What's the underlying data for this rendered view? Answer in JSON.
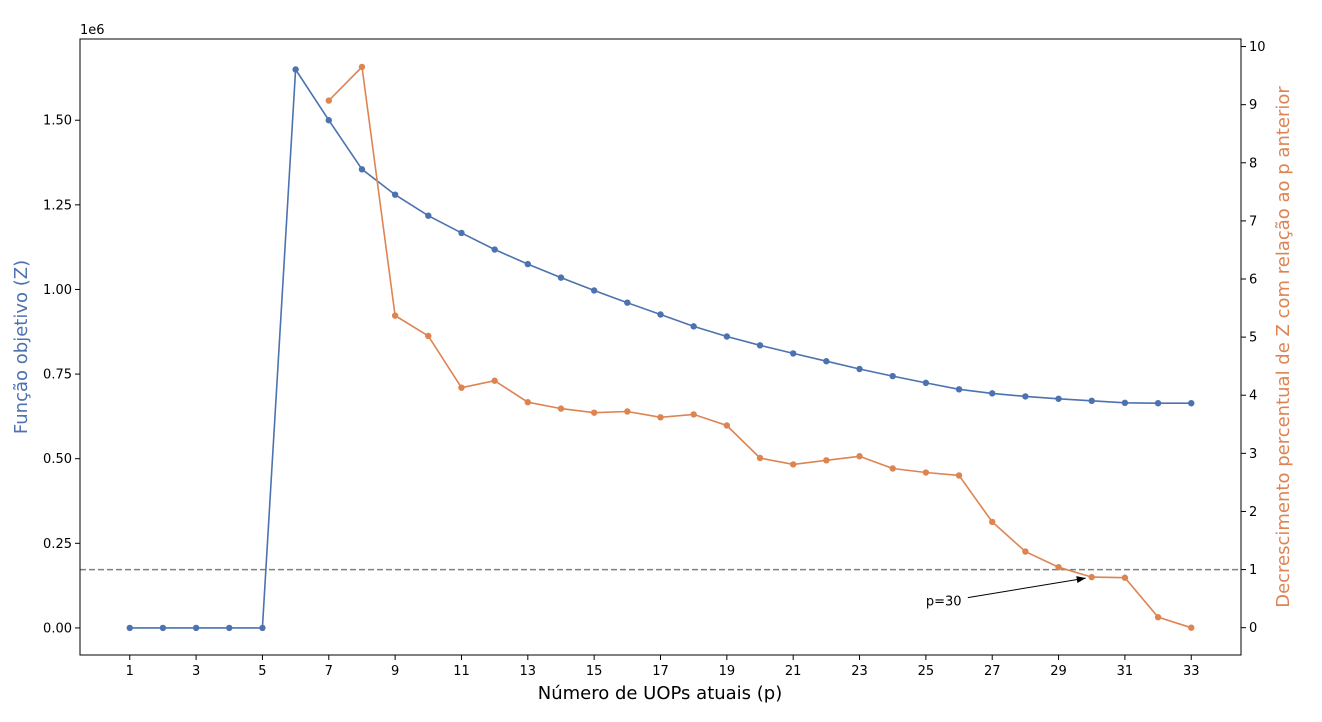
{
  "chart_data": {
    "type": "line",
    "xlabel": "Número de UOPs atuais (p)",
    "x_ticks": [
      1,
      3,
      5,
      7,
      9,
      11,
      13,
      15,
      17,
      19,
      21,
      23,
      25,
      27,
      29,
      31,
      33
    ],
    "xlim": [
      -0.5,
      34.5
    ],
    "left_axis": {
      "label": "Função objetivo (Z)",
      "color": "#4c72b0",
      "offset_label": "1e6",
      "ylim": [
        -0.08,
        1.74
      ],
      "ticks": [
        0.0,
        0.25,
        0.5,
        0.75,
        1.0,
        1.25,
        1.5
      ],
      "tick_labels": [
        "0.00",
        "0.25",
        "0.50",
        "0.75",
        "1.00",
        "1.25",
        "1.50"
      ]
    },
    "right_axis": {
      "label": "Decrescimento percentual de Z com relação ao p anterior",
      "color": "#dd8452",
      "ylim": [
        -0.47,
        10.13
      ],
      "ticks": [
        0,
        1,
        2,
        3,
        4,
        5,
        6,
        7,
        8,
        9,
        10
      ],
      "tick_labels": [
        "0",
        "1",
        "2",
        "3",
        "4",
        "5",
        "6",
        "7",
        "8",
        "9",
        "10"
      ]
    },
    "series": [
      {
        "axis": "left",
        "color": "#4c72b0",
        "x": [
          1,
          2,
          3,
          4,
          5,
          6,
          7,
          8,
          9,
          10,
          11,
          12,
          13,
          14,
          15,
          16,
          17,
          18,
          19,
          20,
          21,
          22,
          23,
          24,
          25,
          26,
          27,
          28,
          29,
          30,
          31,
          32,
          33
        ],
        "values": [
          0,
          0,
          0,
          0,
          0,
          1.65,
          1.5,
          1.355,
          1.28,
          1.218,
          1.167,
          1.118,
          1.075,
          1.035,
          0.997,
          0.961,
          0.926,
          0.891,
          0.861,
          0.835,
          0.811,
          0.788,
          0.765,
          0.744,
          0.724,
          0.705,
          0.693,
          0.684,
          0.677,
          0.671,
          0.665,
          0.664,
          0.664
        ]
      },
      {
        "axis": "right",
        "color": "#dd8452",
        "x": [
          7,
          8,
          9,
          10,
          11,
          12,
          13,
          14,
          15,
          16,
          17,
          18,
          19,
          20,
          21,
          22,
          23,
          24,
          25,
          26,
          27,
          28,
          29,
          30,
          31,
          32,
          33
        ],
        "values": [
          9.07,
          9.65,
          5.37,
          5.02,
          4.13,
          4.25,
          3.88,
          3.77,
          3.7,
          3.72,
          3.62,
          3.67,
          3.48,
          2.92,
          2.81,
          2.88,
          2.95,
          2.74,
          2.67,
          2.62,
          1.82,
          1.31,
          1.04,
          0.87,
          0.86,
          0.18,
          0.0
        ]
      }
    ],
    "reference_line": {
      "axis": "right",
      "value": 1,
      "color": "#808080",
      "style": "dashed"
    },
    "annotation": {
      "text": "p=30",
      "text_x": 25,
      "text_y": 0.38,
      "arrow_x": 30,
      "arrow_y": 0.87,
      "axis": "right"
    },
    "grid": false,
    "legend": "none"
  }
}
